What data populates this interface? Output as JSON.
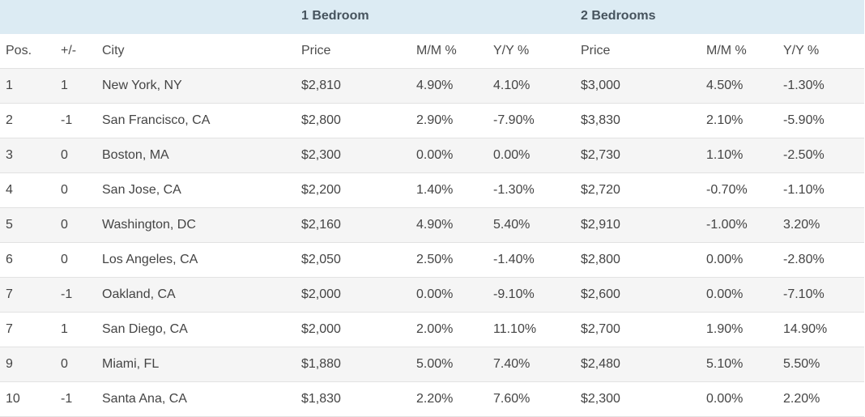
{
  "groups": {
    "one_bedroom": "1 Bedroom",
    "two_bedrooms": "2 Bedrooms"
  },
  "columns": {
    "pos": "Pos.",
    "change": "+/-",
    "city": "City",
    "price1": "Price",
    "mm1": "M/M %",
    "yy1": "Y/Y %",
    "price2": "Price",
    "mm2": "M/M %",
    "yy2": "Y/Y %"
  },
  "rows": [
    {
      "pos": "1",
      "change": "1",
      "city": "New York, NY",
      "price1": "$2,810",
      "mm1": "4.90%",
      "yy1": "4.10%",
      "price2": "$3,000",
      "mm2": "4.50%",
      "yy2": "-1.30%"
    },
    {
      "pos": "2",
      "change": "-1",
      "city": "San Francisco, CA",
      "price1": "$2,800",
      "mm1": "2.90%",
      "yy1": "-7.90%",
      "price2": "$3,830",
      "mm2": "2.10%",
      "yy2": "-5.90%"
    },
    {
      "pos": "3",
      "change": "0",
      "city": "Boston, MA",
      "price1": "$2,300",
      "mm1": "0.00%",
      "yy1": "0.00%",
      "price2": "$2,730",
      "mm2": "1.10%",
      "yy2": "-2.50%"
    },
    {
      "pos": "4",
      "change": "0",
      "city": "San Jose, CA",
      "price1": "$2,200",
      "mm1": "1.40%",
      "yy1": "-1.30%",
      "price2": "$2,720",
      "mm2": "-0.70%",
      "yy2": "-1.10%"
    },
    {
      "pos": "5",
      "change": "0",
      "city": "Washington, DC",
      "price1": "$2,160",
      "mm1": "4.90%",
      "yy1": "5.40%",
      "price2": "$2,910",
      "mm2": "-1.00%",
      "yy2": "3.20%"
    },
    {
      "pos": "6",
      "change": "0",
      "city": "Los Angeles, CA",
      "price1": "$2,050",
      "mm1": "2.50%",
      "yy1": "-1.40%",
      "price2": "$2,800",
      "mm2": "0.00%",
      "yy2": "-2.80%"
    },
    {
      "pos": "7",
      "change": "-1",
      "city": "Oakland, CA",
      "price1": "$2,000",
      "mm1": "0.00%",
      "yy1": "-9.10%",
      "price2": "$2,600",
      "mm2": "0.00%",
      "yy2": "-7.10%"
    },
    {
      "pos": "7",
      "change": "1",
      "city": "San Diego, CA",
      "price1": "$2,000",
      "mm1": "2.00%",
      "yy1": "11.10%",
      "price2": "$2,700",
      "mm2": "1.90%",
      "yy2": "14.90%"
    },
    {
      "pos": "9",
      "change": "0",
      "city": "Miami, FL",
      "price1": "$1,880",
      "mm1": "5.00%",
      "yy1": "7.40%",
      "price2": "$2,480",
      "mm2": "5.10%",
      "yy2": "5.50%"
    },
    {
      "pos": "10",
      "change": "-1",
      "city": "Santa Ana, CA",
      "price1": "$1,830",
      "mm1": "2.20%",
      "yy1": "7.60%",
      "price2": "$2,300",
      "mm2": "0.00%",
      "yy2": "2.20%"
    }
  ],
  "colors": {
    "group_header_bg": "#dcebf3",
    "stripe_bg": "#f5f5f5",
    "border": "#e2e2e2",
    "text": "#444444"
  }
}
